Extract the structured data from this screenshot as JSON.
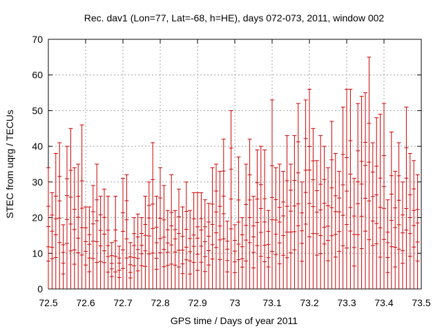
{
  "chart_data": {
    "type": "scatter",
    "title": "Rec. dav1 (Lon=77, Lat=-68, h=HE), days 072-073, 2011, window 002",
    "xlabel": "GPS time / Days of year 2011",
    "ylabel": "STEC from uqrg / TECUs",
    "xlim": [
      72.5,
      73.5
    ],
    "ylim": [
      0,
      70
    ],
    "xticks": [
      "72.5",
      "72.6",
      "72.7",
      "72.8",
      "72.9",
      "73",
      "73.1",
      "73.2",
      "73.3",
      "73.4",
      "73.5"
    ],
    "yticks": [
      "0",
      "10",
      "20",
      "30",
      "40",
      "50",
      "60",
      "70"
    ],
    "grid": true,
    "error_bar_lower": 0,
    "series": [
      {
        "name": "STEC",
        "color": "#cc0000",
        "x": [
          72.5,
          72.51,
          72.52,
          72.53,
          72.54,
          72.55,
          72.56,
          72.57,
          72.58,
          72.59,
          72.6,
          72.61,
          72.62,
          72.63,
          72.64,
          72.65,
          72.66,
          72.67,
          72.68,
          72.69,
          72.7,
          72.71,
          72.72,
          72.73,
          72.74,
          72.75,
          72.76,
          72.77,
          72.78,
          72.79,
          72.8,
          72.81,
          72.82,
          72.83,
          72.84,
          72.85,
          72.86,
          72.87,
          72.88,
          72.89,
          72.9,
          72.91,
          72.92,
          72.93,
          72.94,
          72.95,
          72.96,
          72.97,
          72.98,
          72.99,
          73.0,
          73.01,
          73.02,
          73.03,
          73.04,
          73.05,
          73.06,
          73.07,
          73.08,
          73.09,
          73.1,
          73.11,
          73.12,
          73.13,
          73.14,
          73.15,
          73.16,
          73.17,
          73.18,
          73.19,
          73.2,
          73.21,
          73.22,
          73.23,
          73.24,
          73.25,
          73.26,
          73.27,
          73.28,
          73.29,
          73.3,
          73.31,
          73.32,
          73.33,
          73.34,
          73.35,
          73.36,
          73.37,
          73.38,
          73.39,
          73.4,
          73.41,
          73.42,
          73.43,
          73.44,
          73.45,
          73.46,
          73.47,
          73.48,
          73.49
        ],
        "values": [
          34,
          27,
          38,
          41,
          18,
          40,
          45,
          34,
          35,
          46,
          23,
          23,
          29,
          35,
          26,
          28,
          26,
          13,
          26,
          12,
          31,
          32,
          13,
          20,
          21,
          20,
          26,
          30,
          41,
          26,
          34,
          29,
          22,
          32,
          22,
          28,
          23,
          30,
          22,
          27,
          27,
          27,
          25,
          24,
          34,
          35,
          33,
          42,
          19,
          50,
          18,
          37,
          20,
          35,
          42,
          26,
          39,
          40,
          39,
          22,
          53,
          34,
          35,
          33,
          43,
          35,
          43,
          52,
          30,
          53,
          56,
          45,
          36,
          43,
          40,
          34,
          47,
          38,
          33,
          51,
          56,
          56,
          31,
          52,
          54,
          55,
          65,
          41,
          48,
          49,
          52,
          25,
          44,
          33,
          41,
          30,
          51,
          38,
          36,
          32
        ]
      }
    ]
  }
}
